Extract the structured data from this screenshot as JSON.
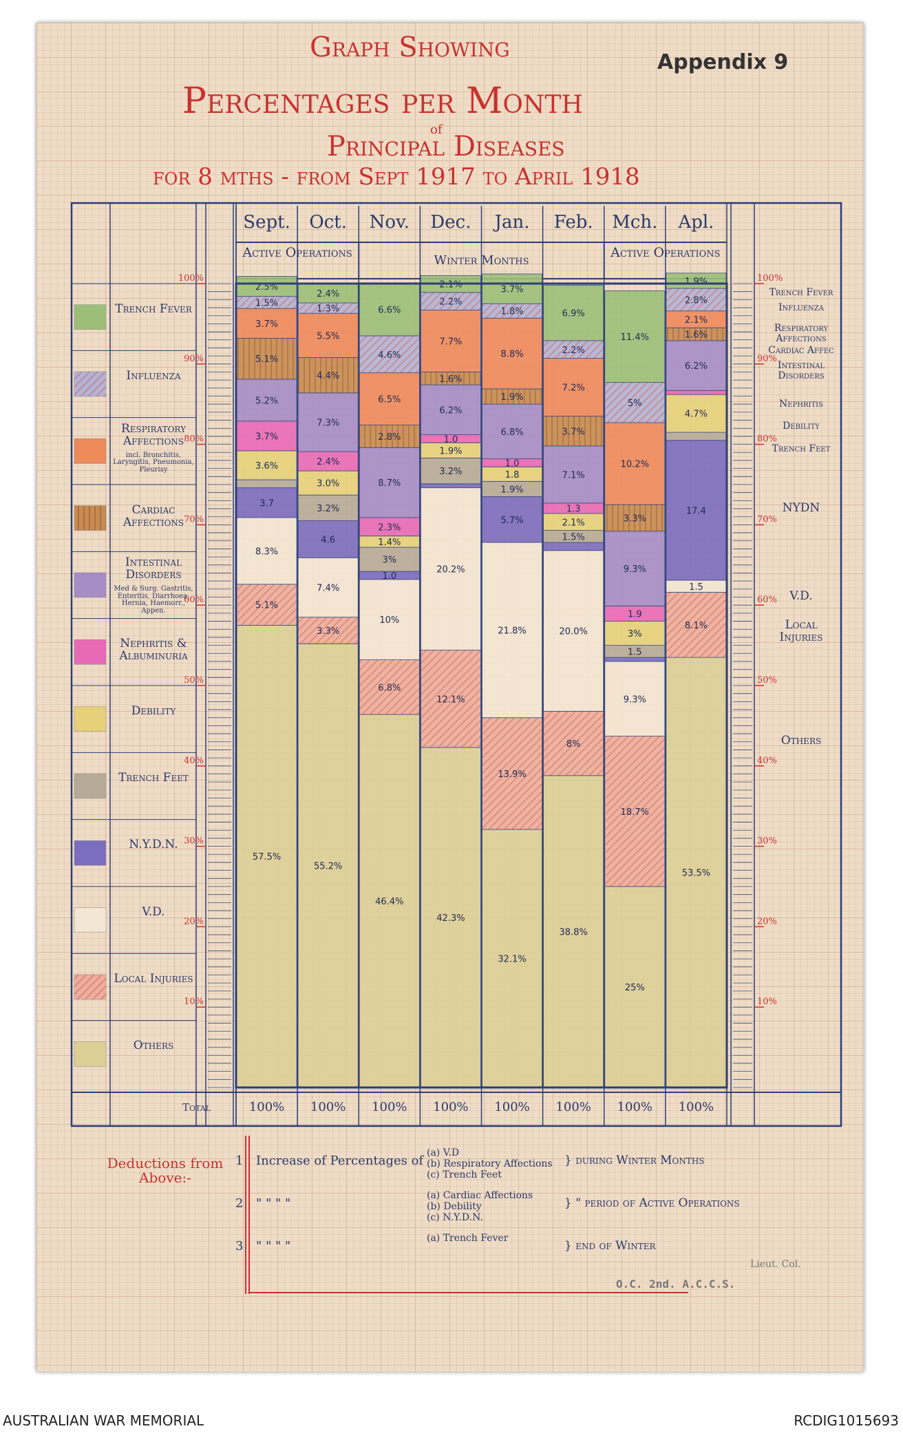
{
  "chart_data": {
    "type": "stacked_bar",
    "pre_title": "Graph Showing",
    "title": "Percentages per Month",
    "title_of": "of",
    "subtitle": "Principal Diseases",
    "period_text": "for 8 mths - from Sept 1917 to April 1918",
    "appendix": "Appendix 9",
    "categories": [
      "Sept.",
      "Oct.",
      "Nov.",
      "Dec.",
      "Jan.",
      "Feb.",
      "Mch.",
      "Apl."
    ],
    "periods": [
      "Active Operations",
      "Winter Months",
      "Active Operations"
    ],
    "ylim": [
      0,
      100
    ],
    "yticks": [
      {
        "value": 10,
        "label": "10%"
      },
      {
        "value": 20,
        "label": "20%"
      },
      {
        "value": 30,
        "label": "30%"
      },
      {
        "value": 40,
        "label": "40%"
      },
      {
        "value": 50,
        "label": "50%"
      },
      {
        "value": 60,
        "label": "60%"
      },
      {
        "value": 70,
        "label": "70%"
      },
      {
        "value": 80,
        "label": "80%"
      },
      {
        "value": 90,
        "label": "90%"
      },
      {
        "value": 100,
        "label": "100%"
      }
    ],
    "series": [
      {
        "name": "Trench Fever",
        "color": "#9cbf78",
        "values": [
          2.5,
          2.4,
          6.6,
          2.1,
          3.7,
          6.9,
          11.4,
          1.9
        ],
        "value_labels": [
          "2.5%",
          "2.4%",
          "6.6%",
          "2.1%",
          "3.7%",
          "6.9%",
          "11.4%",
          "1.9%"
        ]
      },
      {
        "name": "Influenza",
        "color": "#b5b3d6",
        "pattern": "hatch",
        "values": [
          1.5,
          1.3,
          4.6,
          2.2,
          1.8,
          2.2,
          5,
          2.8
        ],
        "value_labels": [
          "1.5%",
          "1.3%",
          "4.6%",
          "2.2%",
          "1.8%",
          "2.2%",
          "5%",
          "2.8%"
        ]
      },
      {
        "name": "Respiratory Affections",
        "note": "incl. Bronchitis, Laryngitis, Pneumonia, Pleurisy",
        "color": "#ee8a5c",
        "values": [
          3.7,
          5.5,
          6.5,
          7.7,
          8.8,
          7.2,
          10.2,
          2.1
        ],
        "value_labels": [
          "3.7%",
          "5.5%",
          "6.5%",
          "7.7%",
          "8.8%",
          "7.2%",
          "10.2%",
          "2.1%"
        ]
      },
      {
        "name": "Cardiac Affections",
        "color": "#c98b52",
        "pattern": "stripe",
        "values": [
          5.1,
          4.4,
          2.8,
          1.6,
          1.9,
          3.7,
          3.3,
          1.6
        ],
        "value_labels": [
          "5.1%",
          "4.4%",
          "2.8%",
          "1.6%",
          "1.9%",
          "3.7%",
          "3.3%",
          "1.6%"
        ]
      },
      {
        "name": "Intestinal Disorders",
        "note": "Med & Surg. Gastritis, Enteritis, Diarrhoea, Hernia, Haemorr., Appen.",
        "color": "#a68dc6",
        "values": [
          5.2,
          7.3,
          8.7,
          6.2,
          6.8,
          7.1,
          9.3,
          6.2
        ],
        "value_labels": [
          "5.2%",
          "7.3%",
          "8.7%",
          "6.2%",
          "6.8%",
          "7.1%",
          "9.3%",
          "6.2%"
        ]
      },
      {
        "name": "Nephritis & Albuminuria",
        "color": "#e86ab6",
        "values": [
          3.7,
          2.4,
          2.3,
          1,
          1,
          1.3,
          1.9,
          0.5
        ],
        "value_labels": [
          "3.7%",
          "2.4%",
          "2.3%",
          "1.0",
          "1.0",
          "1.3",
          "1.9",
          null
        ]
      },
      {
        "name": "Debility",
        "color": "#e6d17a",
        "values": [
          3.6,
          3,
          1.4,
          1.9,
          1.8,
          2.1,
          3,
          4.7
        ],
        "value_labels": [
          "3.6%",
          "3.0%",
          "1.4%",
          "1.9%",
          "1.8",
          "2.1%",
          "3%",
          "4.7%"
        ]
      },
      {
        "name": "Trench Feet",
        "color": "#b7ab97",
        "values": [
          1,
          3.2,
          3,
          3.2,
          1.9,
          1.5,
          1.5,
          1
        ],
        "value_labels": [
          null,
          "3.2%",
          "3%",
          "3.2%",
          "1.9%",
          "1.5%",
          "1.5",
          null
        ]
      },
      {
        "name": "N.Y.D.N.",
        "color": "#7b6dbf",
        "values": [
          3.7,
          4.6,
          1,
          0.5,
          5.7,
          1,
          0.5,
          17.4
        ],
        "value_labels": [
          "3.7",
          "4.6",
          "1.0",
          null,
          "5.7%",
          null,
          null,
          "17.4"
        ]
      },
      {
        "name": "V.D.",
        "color": "#f3e6d2",
        "values": [
          8.3,
          7.4,
          10,
          20.2,
          21.8,
          20,
          9.3,
          1.5
        ],
        "value_labels": [
          "8.3%",
          "7.4%",
          "10%",
          "20.2%",
          "21.8%",
          "20.0%",
          "9.3%",
          "1.5"
        ]
      },
      {
        "name": "Local Injuries",
        "color": "#efae9e",
        "pattern": "hatch",
        "values": [
          5.1,
          3.3,
          6.8,
          12.1,
          13.9,
          8,
          18.7,
          8.1
        ],
        "value_labels": [
          "5.1%",
          "3.3%",
          "6.8%",
          "12.1%",
          "13.9%",
          "8%",
          "18.7%",
          "8.1%"
        ]
      },
      {
        "name": "Others",
        "color": "#dccf96",
        "values": [
          57.5,
          55.2,
          46.4,
          42.3,
          32.1,
          38.8,
          25,
          53.5
        ],
        "value_labels": [
          "57.5%",
          "55.2%",
          "46.4%",
          "42.3%",
          "32.1%",
          "38.8%",
          "25%",
          "53.5%"
        ]
      }
    ],
    "right_labels": [
      "Trench Fever",
      "Influenza",
      "Respiratory Affections",
      "Cardiac Affec",
      "Intestinal Disorders",
      "Nephritis",
      "Debility",
      "Trench Feet",
      "NYDN",
      "V.D.",
      "Local Injuries",
      "Others"
    ],
    "total_label": "Total",
    "totals": [
      "100%",
      "100%",
      "100%",
      "100%",
      "100%",
      "100%",
      "100%",
      "100%"
    ],
    "deductions_label": "Deductions from Above:-",
    "deductions": [
      {
        "number": "1",
        "lead": "Increase of Percentages of",
        "items": [
          "(a) V.D",
          "(b) Respiratory Affections",
          "(c) Trench Feet"
        ],
        "text": "} during Winter Months"
      },
      {
        "number": "2",
        "lead": "\"   \"   \"   \"",
        "items": [
          "(a) Cardiac Affections",
          "(b) Debility",
          "(c) N.Y.D.N."
        ],
        "text": "}  \"  period of Active Operations"
      },
      {
        "number": "3",
        "lead": "\"   \"   \"   \"",
        "items": [
          "(a) Trench Fever"
        ],
        "text": "} end of Winter"
      }
    ],
    "stamp": "O.C. 2nd. A.C.C.S.",
    "rank": "Lieut. Col."
  },
  "footer": {
    "left": "AUSTRALIAN WAR MEMORIAL",
    "right": "RCDIG1015693"
  }
}
